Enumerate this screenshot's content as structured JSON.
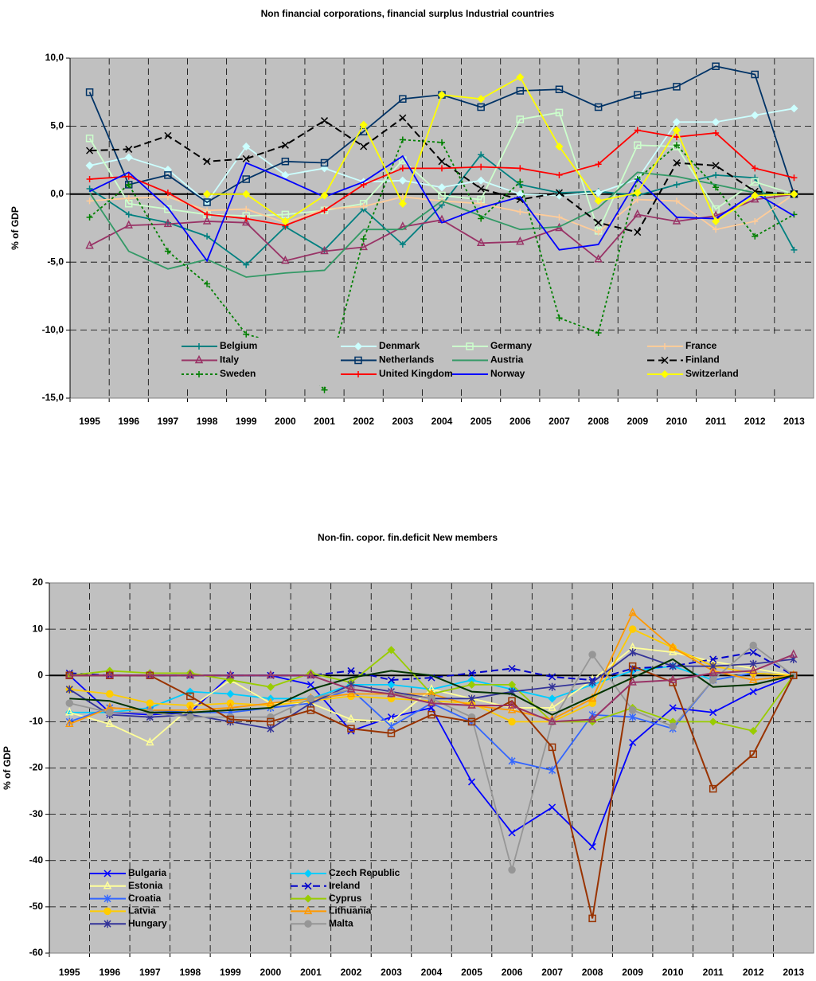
{
  "chart_data": [
    {
      "type": "line",
      "title": "Non financial corporations, financial surplus Industrial countries",
      "y_label": "% of GDP",
      "categories": [
        "1995",
        "1996",
        "1997",
        "1998",
        "1999",
        "2000",
        "2001",
        "2002",
        "2003",
        "2004",
        "2005",
        "2006",
        "2007",
        "2008",
        "2009",
        "2010",
        "2011",
        "2012",
        "2013"
      ],
      "ylim": [
        -15,
        10
      ],
      "yticks": [
        {
          "value": -15,
          "label": "-15,0"
        },
        {
          "value": -10,
          "label": "-10,0"
        },
        {
          "value": -5,
          "label": "-5,0"
        },
        {
          "value": 0,
          "label": "0,0"
        },
        {
          "value": 5,
          "label": "5,0"
        },
        {
          "value": 10,
          "label": "10,0"
        }
      ],
      "grid": true,
      "legend": "bottom",
      "series": [
        {
          "name": "Belgium",
          "color": "#008080",
          "marker": "plus",
          "dash": "solid",
          "values": [
            0.4,
            -1.5,
            -2.1,
            -3.1,
            -5.2,
            -2.4,
            -4.1,
            -1.1,
            -3.7,
            -0.8,
            2.9,
            0.7,
            0.1,
            0.2,
            -0.1,
            0.7,
            1.4,
            1.2,
            -4.1
          ]
        },
        {
          "name": "Denmark",
          "color": "#ccffff",
          "marker": "diamond",
          "dash": "solid",
          "values": [
            2.1,
            2.7,
            1.8,
            -0.6,
            3.5,
            1.4,
            1.9,
            0.9,
            1.0,
            0.5,
            1.0,
            0.0,
            -0.1,
            0.1,
            1.1,
            5.3,
            5.3,
            5.8,
            6.3
          ]
        },
        {
          "name": "Germany",
          "color": "#ccffcc",
          "marker": "square",
          "dash": "solid",
          "values": [
            4.1,
            -0.7,
            -1.1,
            -1.5,
            -1.6,
            -1.5,
            -1.2,
            -0.7,
            2.5,
            -0.1,
            -0.4,
            5.5,
            6.0,
            -2.7,
            3.6,
            3.5,
            -1.1,
            0.9,
            0.0
          ]
        },
        {
          "name": "France",
          "color": "#ffcc99",
          "marker": "plus",
          "dash": "solid",
          "values": [
            -0.5,
            -0.3,
            -0.2,
            -1.2,
            -1.1,
            -2.1,
            -1.1,
            -0.9,
            -0.2,
            -0.5,
            -0.7,
            -1.3,
            -1.7,
            -2.8,
            -0.4,
            -0.5,
            -2.6,
            -2.0,
            0.0
          ]
        },
        {
          "name": "Italy",
          "color": "#993366",
          "marker": "triangle",
          "dash": "solid",
          "values": [
            -3.8,
            -2.3,
            -2.2,
            -2.0,
            -2.1,
            -4.9,
            -4.2,
            -3.9,
            -2.4,
            -1.9,
            -3.6,
            -3.5,
            -2.5,
            -4.8,
            -1.5,
            -2.0,
            -1.6,
            -0.4,
            0.0
          ]
        },
        {
          "name": "Netherlands",
          "color": "#003366",
          "marker": "square",
          "dash": "solid",
          "values": [
            7.5,
            0.7,
            1.4,
            -0.6,
            1.1,
            2.4,
            2.3,
            4.6,
            7.0,
            7.3,
            6.4,
            7.6,
            7.7,
            6.4,
            7.3,
            7.9,
            9.4,
            8.8,
            0.0
          ]
        },
        {
          "name": "Austria",
          "color": "#339966",
          "marker": "none",
          "dash": "solid",
          "values": [
            0.1,
            -4.2,
            -5.5,
            -4.8,
            -6.1,
            -5.8,
            -5.6,
            -2.6,
            -2.6,
            -0.5,
            -1.6,
            -2.6,
            -2.4,
            -1.0,
            1.6,
            1.3,
            0.7,
            0.1,
            0.0
          ]
        },
        {
          "name": "Finland",
          "color": "#000000",
          "marker": "x",
          "dash": "dashed",
          "values": [
            3.2,
            3.3,
            4.3,
            2.4,
            2.6,
            3.6,
            5.4,
            3.5,
            5.6,
            2.4,
            0.4,
            -0.4,
            0.1,
            -2.1,
            -2.8,
            2.3,
            2.1,
            0.2,
            0.0
          ]
        },
        {
          "name": "Sweden",
          "color": "#008000",
          "marker": "plus",
          "dash": "dotted",
          "values": [
            -1.7,
            0.7,
            -4.2,
            -6.6,
            -10.3,
            -11.1,
            -14.4,
            -3.3,
            4.0,
            3.8,
            -1.8,
            0.9,
            -9.1,
            -10.2,
            1.1,
            3.6,
            0.5,
            -3.1,
            -1.5
          ]
        },
        {
          "name": "United Kingdom",
          "color": "#ff0000",
          "marker": "plus",
          "dash": "solid",
          "values": [
            1.1,
            1.3,
            0.1,
            -1.5,
            -1.8,
            -2.3,
            -1.2,
            0.7,
            1.9,
            1.9,
            2.0,
            1.9,
            1.4,
            2.2,
            4.7,
            4.2,
            4.5,
            1.9,
            1.2
          ]
        },
        {
          "name": "Norway",
          "color": "#0000ff",
          "marker": "none",
          "dash": "solid",
          "values": [
            0.2,
            1.6,
            -1.0,
            -4.9,
            2.3,
            1.1,
            -0.2,
            0.9,
            2.8,
            -2.1,
            -1.0,
            -0.2,
            -4.1,
            -3.7,
            1.1,
            -1.7,
            -1.8,
            0.1,
            -1.6
          ]
        },
        {
          "name": "Switzerland",
          "color": "#ffff00",
          "marker": "diamond",
          "dash": "solid",
          "values": [
            null,
            null,
            null,
            0.0,
            0.0,
            -2.0,
            -0.1,
            5.1,
            -0.7,
            7.3,
            7.0,
            8.6,
            3.5,
            -0.5,
            0.1,
            4.7,
            -2.0,
            -0.1,
            0.0
          ]
        }
      ]
    },
    {
      "type": "line",
      "title": "Non-fin. copor. fin.deficit New members",
      "y_label": "% of GDP",
      "categories": [
        "1995",
        "1996",
        "1997",
        "1998",
        "1999",
        "2000",
        "2001",
        "2002",
        "2003",
        "2004",
        "2005",
        "2006",
        "2007",
        "2008",
        "2009",
        "2010",
        "2011",
        "2012",
        "2013"
      ],
      "ylim": [
        -60,
        20
      ],
      "yticks": [
        -60,
        -50,
        -40,
        -30,
        -20,
        -10,
        0,
        10,
        20
      ],
      "grid": true,
      "legend": "bottom-left",
      "series": [
        {
          "name": "Bulgaria",
          "color": "#0000ff",
          "marker": "x",
          "dash": "solid",
          "values": [
            0.0,
            -8,
            -8.5,
            -8,
            0,
            0,
            -2,
            -12,
            -9,
            -7,
            -23,
            -34,
            -28.5,
            -37,
            -14.5,
            -7,
            -8,
            -3.5,
            0
          ]
        },
        {
          "name": "Czech Republic",
          "color": "#00ccff",
          "marker": "diamond",
          "dash": "solid",
          "values": [
            -8,
            -8,
            -7,
            -3.5,
            -4,
            -5,
            -5,
            -2,
            -2,
            -3,
            -1,
            -3,
            -5,
            -2,
            1,
            2,
            -1,
            0.5,
            0
          ]
        },
        {
          "name": "Estonia",
          "color": "#ffff99",
          "marker": "triangle",
          "dash": "solid",
          "values": [
            -8,
            -10.5,
            -14.5,
            -7,
            -1,
            -6,
            -6,
            -9.5,
            -10,
            -3,
            -5,
            -7,
            -7,
            -1,
            6,
            5,
            3,
            1.5,
            0
          ]
        },
        {
          "name": "Ireland",
          "color": "#0000cc",
          "marker": "x",
          "dash": "dashed",
          "values": [
            0.5,
            0,
            0,
            0,
            0,
            0,
            0,
            1,
            -1,
            -0.5,
            0.5,
            1.5,
            -0.3,
            -1,
            1.5,
            2,
            3.5,
            5,
            0
          ]
        },
        {
          "name": "Croatia",
          "color": "#3366ff",
          "marker": "star",
          "dash": "solid",
          "values": [
            -10,
            -7,
            -7.5,
            -8,
            -8,
            -7,
            -6,
            -3,
            -11,
            -6,
            -10,
            -18.5,
            -20.5,
            -8.5,
            -9,
            -11.5,
            -1,
            0.5,
            0
          ]
        },
        {
          "name": "Cyprus",
          "color": "#99cc00",
          "marker": "diamond",
          "dash": "solid",
          "values": [
            0,
            1,
            0.5,
            0.5,
            -1,
            -2.5,
            0.5,
            -1.5,
            5.5,
            -4,
            -2,
            -2,
            -10,
            -10,
            -7,
            -10,
            -10,
            -12,
            0
          ]
        },
        {
          "name": "Latvia",
          "color": "#ffcc00",
          "marker": "circle",
          "dash": "solid",
          "values": [
            -3,
            -4,
            -6,
            -6.5,
            -6,
            -6.5,
            -5.5,
            -4.5,
            -5,
            -5.5,
            -6,
            -10,
            -10,
            -6,
            10,
            6,
            2,
            0.5,
            0
          ]
        },
        {
          "name": "Lithuania",
          "color": "#ff9900",
          "marker": "triangle",
          "dash": "solid",
          "values": [
            -10.5,
            -7,
            -7.5,
            -7.5,
            -7,
            -6,
            -5,
            -4,
            -4,
            -4,
            -6.5,
            -7.5,
            -9.5,
            -5,
            13.5,
            6,
            1,
            -1,
            0
          ]
        },
        {
          "name": "Hungary",
          "color": "#333399",
          "marker": "star",
          "dash": "solid",
          "values": [
            -3,
            -8.5,
            -9,
            -8.5,
            -10,
            -11.5,
            -6,
            -2,
            -3.5,
            -5,
            -5,
            -3.5,
            -2.5,
            -1.5,
            5,
            2,
            2,
            2.5,
            3.5
          ]
        },
        {
          "name": "Malta",
          "color": "#969696",
          "marker": "circle",
          "dash": "solid",
          "values": [
            -6,
            -8,
            -8,
            -9,
            -9,
            -9,
            -5,
            -3,
            -4,
            -5,
            -9,
            -42,
            -10,
            4.5,
            -7.5,
            -11,
            -1,
            6.5,
            0
          ]
        },
        {
          "color": "#993300",
          "marker": "square",
          "dash": "solid",
          "values": [
            0,
            0,
            0,
            -4.5,
            -9.5,
            -10,
            -7.5,
            -11.5,
            -12.5,
            -8.5,
            -10,
            -5.5,
            -15.5,
            -52.5,
            2,
            -1.5,
            -24.5,
            -17,
            0
          ]
        },
        {
          "color": "#003300",
          "marker": "none",
          "dash": "solid",
          "values": [
            -5,
            -5.5,
            -8,
            -8,
            -7.5,
            -7,
            -3,
            -0.5,
            1,
            0,
            -3.5,
            -4,
            -8.5,
            -4.5,
            -0.5,
            3.5,
            -2.5,
            -2,
            0
          ]
        },
        {
          "color": "#993366",
          "marker": "triangle",
          "dash": "solid",
          "values": [
            0,
            0,
            0,
            0,
            0,
            0,
            0,
            -3,
            -4,
            -6,
            -6.5,
            -6.5,
            -10,
            -9.5,
            -1.5,
            -1,
            0.5,
            1,
            4.5
          ]
        }
      ]
    }
  ]
}
